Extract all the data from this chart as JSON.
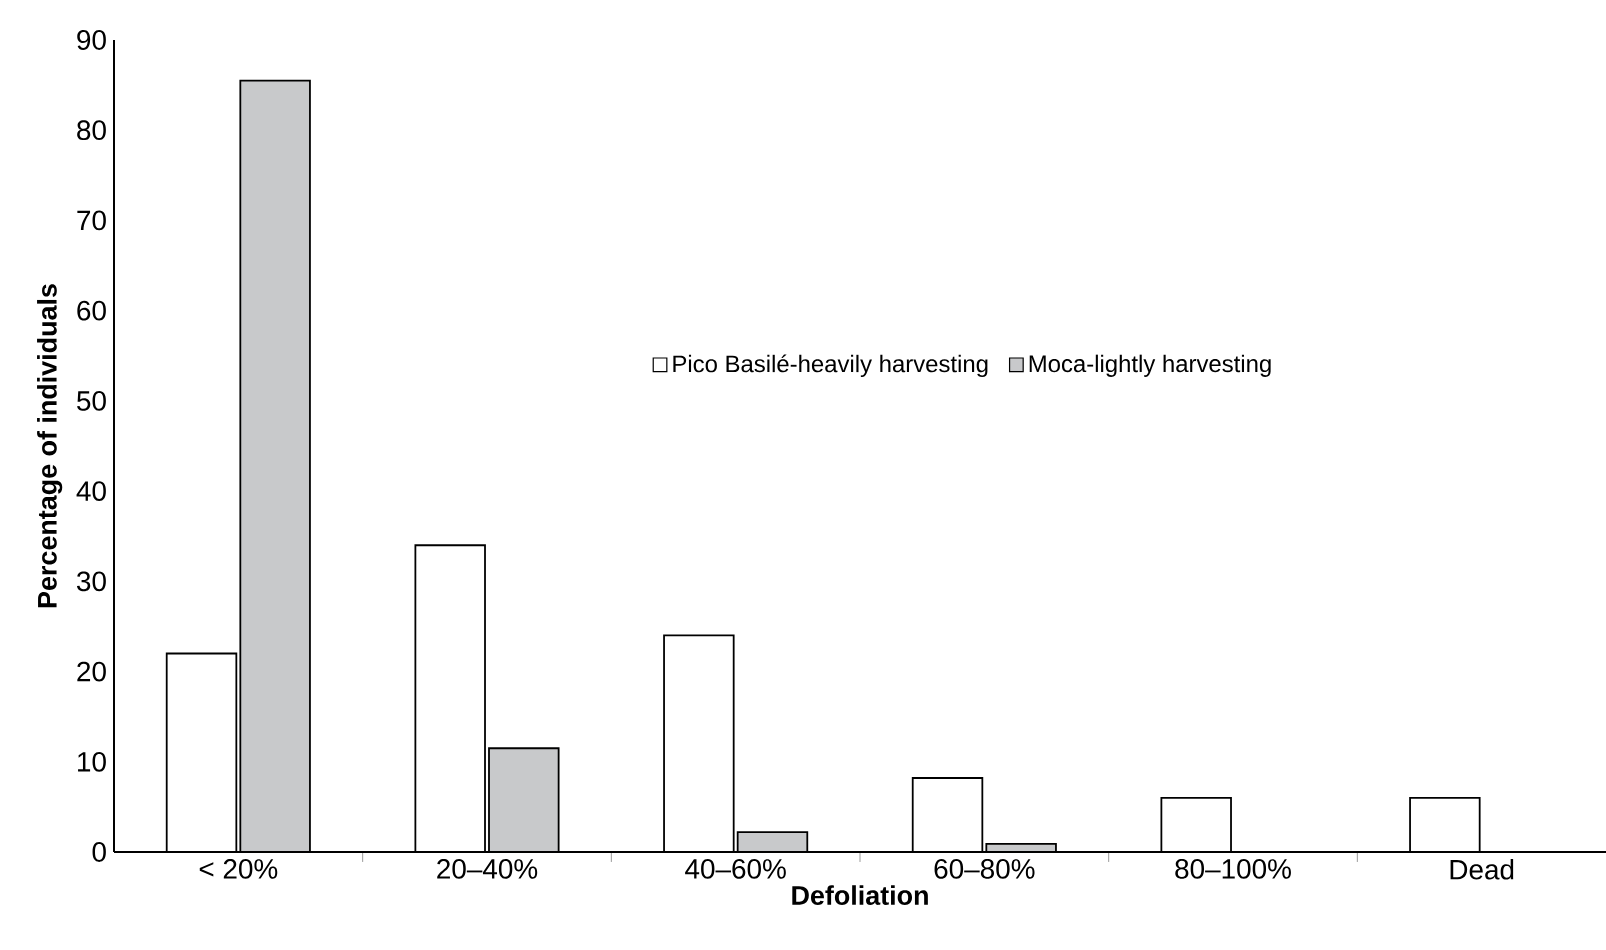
{
  "chart_data": {
    "type": "bar",
    "xlabel": "Defoliation",
    "ylabel": "Percentage of individuals",
    "categories": [
      "< 20%",
      "20–40%",
      "40–60%",
      "60–80%",
      "80–100%",
      "Dead"
    ],
    "series": [
      {
        "name": "Pico Basilé-heavily harvesting",
        "color": "#ffffff",
        "values": [
          22,
          34,
          24,
          8.2,
          6,
          6
        ]
      },
      {
        "name": "Moca-lightly harvesting",
        "color": "#c8c9cb",
        "values": [
          85.5,
          11.5,
          2.2,
          0.9,
          null,
          null
        ]
      }
    ],
    "ylim": [
      0,
      90
    ],
    "yticks": [
      0,
      10,
      20,
      30,
      40,
      50,
      60,
      70,
      80,
      90
    ],
    "legend": "right",
    "grid": false
  }
}
